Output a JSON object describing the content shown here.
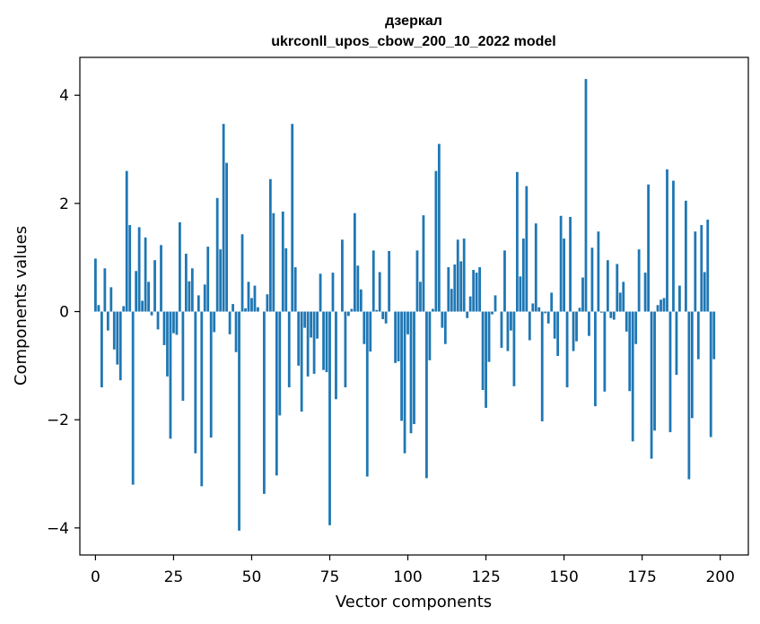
{
  "chart_data": {
    "type": "bar",
    "title_line1": "дзеркал",
    "title_line2": "ukrconll_upos_cbow_200_10_2022 model",
    "xlabel": "Vector components",
    "ylabel": "Components values",
    "xlim": [
      -5,
      209
    ],
    "ylim": [
      -4.5,
      4.7
    ],
    "x_ticks": [
      0,
      25,
      50,
      75,
      100,
      125,
      150,
      175,
      200
    ],
    "y_ticks": [
      -4,
      -2,
      0,
      2,
      4
    ],
    "y_tick_labels": [
      "−4",
      "−2",
      "0",
      "2",
      "4"
    ],
    "bar_color": "#1f77b4",
    "grid": false,
    "values": [
      0.98,
      0.12,
      -1.4,
      0.8,
      -0.35,
      0.45,
      -0.7,
      -0.98,
      -1.27,
      0.1,
      2.6,
      1.6,
      -3.2,
      0.75,
      1.56,
      0.2,
      1.37,
      0.55,
      -0.07,
      0.95,
      -0.33,
      1.23,
      -0.62,
      -1.2,
      -2.35,
      -0.4,
      -0.43,
      1.65,
      -1.65,
      1.07,
      0.56,
      0.8,
      -2.62,
      0.3,
      -3.23,
      0.5,
      1.2,
      -2.33,
      -0.38,
      2.1,
      1.15,
      3.47,
      2.75,
      -0.42,
      0.14,
      -0.75,
      -4.05,
      1.43,
      0.06,
      0.55,
      0.25,
      0.48,
      0.08,
      0.0,
      -3.37,
      0.32,
      2.45,
      1.82,
      -3.03,
      -1.92,
      1.85,
      1.17,
      -1.4,
      3.47,
      0.82,
      -1.0,
      -1.85,
      -0.3,
      -1.2,
      -0.48,
      -1.15,
      -0.5,
      0.7,
      -1.08,
      -1.12,
      -3.95,
      0.72,
      -1.62,
      0.0,
      1.33,
      -1.4,
      -0.08,
      0.05,
      1.82,
      0.85,
      0.41,
      -0.6,
      -3.05,
      -0.74,
      1.13,
      0.03,
      0.73,
      -0.14,
      -0.22,
      1.12,
      0.0,
      -0.95,
      -0.92,
      -2.02,
      -2.62,
      -0.42,
      -2.25,
      -2.08,
      1.13,
      0.55,
      1.78,
      -3.08,
      -0.9,
      0.05,
      2.6,
      3.1,
      -0.3,
      -0.6,
      0.82,
      0.42,
      0.87,
      1.33,
      0.93,
      1.35,
      -0.12,
      0.28,
      0.77,
      0.72,
      0.82,
      -1.45,
      -1.78,
      -0.93,
      -0.05,
      0.3,
      0.0,
      -0.67,
      1.13,
      -0.73,
      -0.35,
      -1.38,
      2.58,
      0.65,
      1.35,
      2.32,
      -0.53,
      0.15,
      1.63,
      0.08,
      -2.03,
      -0.03,
      -0.22,
      0.35,
      -0.5,
      -0.82,
      1.77,
      1.35,
      -1.4,
      1.75,
      -0.73,
      -0.55,
      0.07,
      0.63,
      4.3,
      -0.45,
      1.18,
      -1.75,
      1.48,
      -0.02,
      -1.48,
      0.95,
      -0.12,
      -0.15,
      0.88,
      0.35,
      0.55,
      -0.37,
      -1.47,
      -2.4,
      -0.6,
      1.15,
      0.0,
      0.72,
      2.35,
      -2.72,
      -2.2,
      0.12,
      0.22,
      0.25,
      2.63,
      -2.23,
      2.42,
      -1.17,
      0.48,
      0.0,
      2.05,
      -3.1,
      -1.97,
      1.48,
      -0.88,
      1.6,
      0.73,
      1.7,
      -2.32,
      -0.88
    ]
  }
}
